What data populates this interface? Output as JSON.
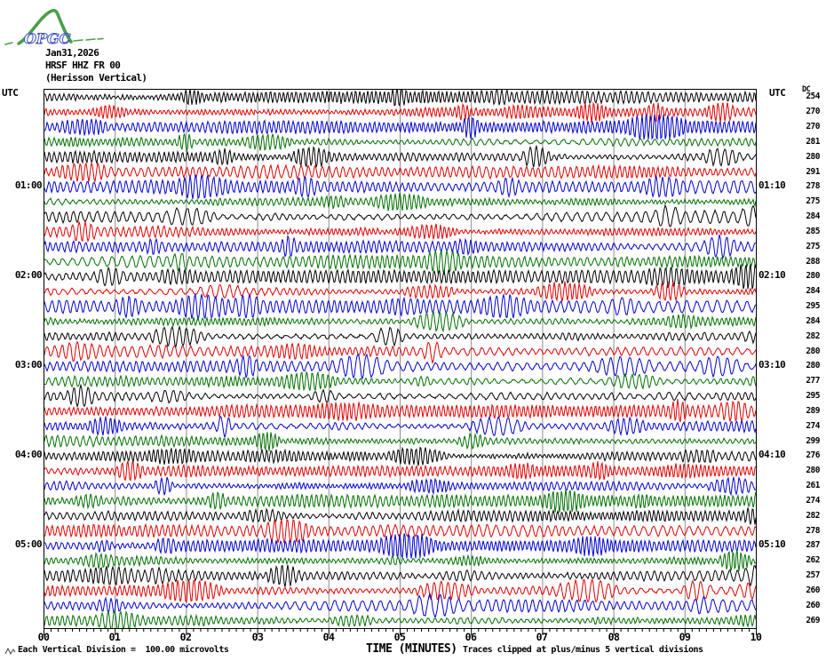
{
  "logo": {
    "text": "OPGC",
    "curve_color": "#4a9e4a",
    "text_color": "#3c50c8"
  },
  "header": {
    "line1": "Jan31,2026",
    "line2": "HRSF HHZ FR 00",
    "line3": "(Herisson Vertical)"
  },
  "axis_labels": {
    "utc_left": "UTC",
    "utc_right": "UTC",
    "dc": "DC",
    "x_title": "TIME (MINUTES)"
  },
  "footer": {
    "scale_note": "Each Vertical Division =  100.00 microvolts",
    "clip_note": "Traces clipped at plus/minus 5 vertical divisions"
  },
  "chart_data": {
    "type": "line",
    "subtype": "helicorder seismogram: 36 rows, each row spans 10 minutes, colors cycle per row",
    "title": "HRSF HHZ FR 00 (Herisson Vertical) Jan31,2026",
    "x_axis": {
      "title": "TIME (MINUTES)",
      "range_minutes": [
        0,
        10
      ],
      "major_tick_labels": [
        "00",
        "01",
        "02",
        "03",
        "04",
        "05",
        "06",
        "07",
        "08",
        "09",
        "10"
      ],
      "minor_tick_every_minutes": 0.1,
      "gridline_minutes": [
        1,
        2,
        3,
        4,
        5,
        6,
        7,
        8,
        9
      ],
      "gridline_color": "#8c8c8c"
    },
    "row_count": 36,
    "trace_color_cycle": [
      "black",
      "red",
      "blue",
      "green"
    ],
    "palette": {
      "black": "#000000",
      "red": "#e00000",
      "blue": "#0000d0",
      "green": "#007000"
    },
    "left_time_labels": [
      {
        "row": 6,
        "label": "01:00"
      },
      {
        "row": 12,
        "label": "02:00"
      },
      {
        "row": 18,
        "label": "03:00"
      },
      {
        "row": 24,
        "label": "04:00"
      },
      {
        "row": 30,
        "label": "05:00"
      }
    ],
    "right_time_labels": [
      {
        "row": 6,
        "label": "01:10"
      },
      {
        "row": 12,
        "label": "02:10"
      },
      {
        "row": 18,
        "label": "03:10"
      },
      {
        "row": 24,
        "label": "04:10"
      },
      {
        "row": 30,
        "label": "05:10"
      }
    ],
    "dc_values": [
      254,
      270,
      270,
      281,
      280,
      291,
      278,
      275,
      284,
      285,
      275,
      288,
      280,
      284,
      295,
      284,
      282,
      280,
      280,
      277,
      295,
      289,
      274,
      299,
      276,
      280,
      261,
      274,
      282,
      278,
      287,
      262,
      257,
      260,
      260,
      269
    ],
    "waveform": "continuous stochastic seismic noise, clipped at plus/minus 5 vertical divisions; individual samples not readable from pixels"
  }
}
